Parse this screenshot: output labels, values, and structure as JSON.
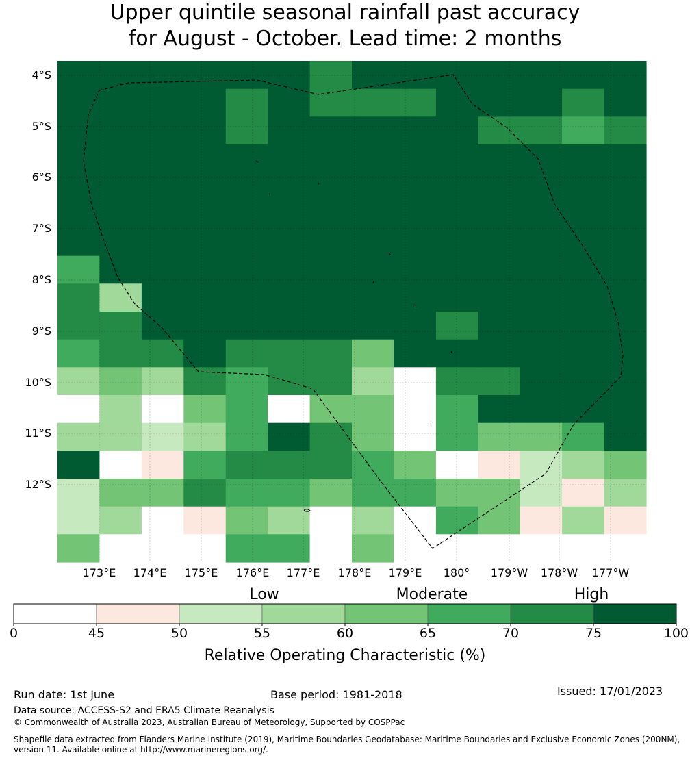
{
  "title": {
    "line1": "Upper quintile seasonal rainfall past accuracy",
    "line2": "for August - October. Lead time: 2 months"
  },
  "map": {
    "lat_labels": [
      "4°S",
      "5°S",
      "6°S",
      "7°S",
      "8°S",
      "9°S",
      "10°S",
      "11°S",
      "12°S"
    ],
    "lon_labels": [
      "173°E",
      "174°E",
      "175°E",
      "176°E",
      "177°E",
      "178°E",
      "179°E",
      "180°",
      "179°W",
      "178°W",
      "177°W"
    ],
    "grid_values": [
      [
        5,
        5,
        5,
        5,
        5,
        5,
        4,
        5,
        5,
        5,
        5,
        5,
        5,
        5
      ],
      [
        5,
        5,
        5,
        5,
        4,
        5,
        4,
        4,
        4,
        5,
        5,
        5,
        4,
        5
      ],
      [
        5,
        5,
        5,
        5,
        4,
        5,
        5,
        5,
        5,
        5,
        4,
        4,
        3,
        4
      ],
      [
        5,
        5,
        5,
        5,
        5,
        5,
        5,
        5,
        5,
        5,
        5,
        5,
        5,
        5
      ],
      [
        5,
        5,
        5,
        5,
        5,
        5,
        5,
        5,
        5,
        5,
        5,
        5,
        5,
        5
      ],
      [
        5,
        5,
        5,
        5,
        5,
        5,
        5,
        5,
        5,
        5,
        5,
        5,
        5,
        5
      ],
      [
        5,
        5,
        5,
        5,
        5,
        5,
        5,
        5,
        5,
        5,
        5,
        5,
        5,
        5
      ],
      [
        3,
        5,
        5,
        5,
        5,
        5,
        5,
        5,
        5,
        5,
        5,
        5,
        5,
        5
      ],
      [
        4,
        1,
        5,
        5,
        5,
        5,
        5,
        5,
        5,
        5,
        5,
        5,
        5,
        5
      ],
      [
        4,
        4,
        5,
        5,
        5,
        5,
        5,
        5,
        5,
        4,
        5,
        5,
        5,
        5
      ],
      [
        3,
        4,
        4,
        5,
        4,
        4,
        4,
        2,
        5,
        5,
        5,
        5,
        5,
        5
      ],
      [
        1,
        2,
        1,
        4,
        3,
        4,
        4,
        1,
        0,
        4,
        4,
        5,
        5,
        5
      ],
      [
        0,
        1,
        0,
        2,
        3,
        0,
        2,
        2,
        0,
        3,
        5,
        5,
        5,
        5
      ],
      [
        1,
        1,
        -2,
        1,
        3,
        5,
        4,
        2,
        0,
        3,
        2,
        2,
        3,
        5
      ],
      [
        5,
        0,
        -1,
        3,
        4,
        4,
        4,
        3,
        2,
        0,
        -1,
        -2,
        1,
        2
      ],
      [
        -2,
        2,
        2,
        4,
        3,
        3,
        2,
        3,
        3,
        2,
        2,
        -2,
        -1,
        1
      ],
      [
        -2,
        1,
        0,
        -1,
        2,
        1,
        0,
        1,
        0,
        3,
        2,
        -1,
        1,
        -1
      ],
      [
        2,
        0,
        0,
        0,
        3,
        3,
        0,
        2,
        0,
        0,
        0,
        0,
        0,
        0
      ]
    ],
    "grid_note_row_heights_top_bottom": "top and bottom rows are partial cells",
    "eez_boundary": "dashed"
  },
  "legend": {
    "categories": [
      "Low",
      "Moderate",
      "High"
    ],
    "ticks": [
      "0",
      "45",
      "50",
      "55",
      "60",
      "65",
      "70",
      "75",
      "100"
    ],
    "colors": [
      "#ffffff",
      "#fde8e0",
      "#c7e9c0",
      "#a1d99b",
      "#74c476",
      "#41ab5d",
      "#238b45",
      "#005a32"
    ],
    "title": "Relative Operating Characteristic (%)"
  },
  "footer": {
    "run_date": "Run date: 1st June",
    "base_period": "Base period: 1981-2018",
    "issued": "Issued: 17/01/2023",
    "data_source": "Data source: ACCESS-S2 and ERA5 Climate Reanalysis",
    "copyright": "© Commonwealth of Australia 2023, Australian Bureau of Meteorology, Supported by COSPPac",
    "shapefile_line1": "Shapefile data extracted from Flanders Marine Institute (2019), Maritime Boundaries Geodatabase: Maritime Boundaries and Exclusive Economic Zones (200NM),",
    "shapefile_line2": "version 11. Available online at http://www.marineregions.org/."
  }
}
